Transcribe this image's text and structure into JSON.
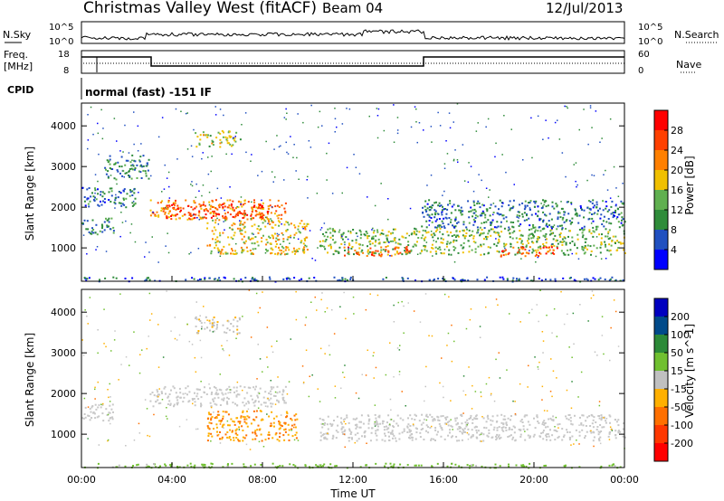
{
  "header": {
    "station": "Christmas Valley West (fitACF)",
    "beam": "Beam 04",
    "date": "12/Jul/2013"
  },
  "strip_panels": {
    "nsky": {
      "label": "N.Sky",
      "ticks_left": [
        "10^5",
        "10^0"
      ],
      "ticks_right": [
        "10^5",
        "10^0"
      ],
      "right_label": "N.Search"
    },
    "freq": {
      "label_top": "Freq.",
      "label_bottom": "[MHz]",
      "ticks_left": [
        "18",
        "8"
      ],
      "ticks_right": [
        "60",
        "0"
      ],
      "right_label": "Nave"
    },
    "cpid": {
      "label": "CPID",
      "program": "normal (fast) -151 IF"
    }
  },
  "colors": {
    "power_scale": [
      "#0000ff",
      "#2050c0",
      "#2f8c3a",
      "#60b050",
      "#f0c000",
      "#ff8000",
      "#ff4000",
      "#ff0000"
    ],
    "velocity_scale": [
      "#0000c0",
      "#004a8a",
      "#2c8a38",
      "#70c030",
      "#c0c0c0",
      "#ffb000",
      "#ff7000",
      "#ff3800",
      "#ff0000"
    ],
    "scatter_grey": "#c8c8c8"
  },
  "chart_data": [
    {
      "type": "heatmap",
      "panel": "power",
      "xlabel": "",
      "ylabel": "Slant Range [km]",
      "xlim": [
        0,
        24
      ],
      "ylim": [
        180,
        4560
      ],
      "yticks": [
        "1000",
        "2000",
        "3000",
        "4000"
      ],
      "colorbar": {
        "label": "Power [dB]",
        "range": [
          0,
          32
        ],
        "ticks": [
          "28",
          "24",
          "20",
          "16",
          "12",
          "8",
          "4"
        ]
      },
      "regions": [
        {
          "name": "ground-scatter-band",
          "t": [
            0,
            24
          ],
          "r": [
            190,
            300
          ],
          "value": 6
        },
        {
          "name": "early-band",
          "t": [
            0.0,
            1.4
          ],
          "r": [
            1350,
            1750
          ],
          "value": 9
        },
        {
          "name": "early-upper",
          "t": [
            0.0,
            2.5
          ],
          "r": [
            2000,
            2500
          ],
          "value": 8
        },
        {
          "name": "arc-3000",
          "t": [
            1.0,
            3.0
          ],
          "r": [
            2700,
            3300
          ],
          "value": 10
        },
        {
          "name": "main-arc",
          "t": [
            3.0,
            9.0
          ],
          "r": [
            1700,
            2200
          ],
          "value": 22
        },
        {
          "name": "main-arc-core",
          "t": [
            3.5,
            8.5
          ],
          "r": [
            1750,
            2100
          ],
          "value": 27
        },
        {
          "name": "upper-patch",
          "t": [
            5.0,
            7.0
          ],
          "r": [
            3500,
            3900
          ],
          "value": 16
        },
        {
          "name": "descending-band",
          "t": [
            5.5,
            10.0
          ],
          "r": [
            850,
            1700
          ],
          "value": 18
        },
        {
          "name": "night-band",
          "t": [
            10.5,
            24
          ],
          "r": [
            850,
            1500
          ],
          "value": 14
        },
        {
          "name": "night-core-1",
          "t": [
            11.5,
            14.5
          ],
          "r": [
            800,
            1050
          ],
          "value": 24
        },
        {
          "name": "night-core-2",
          "t": [
            18.5,
            21.0
          ],
          "r": [
            800,
            1050
          ],
          "value": 25
        },
        {
          "name": "night-upper",
          "t": [
            15.0,
            24
          ],
          "r": [
            1500,
            2200
          ],
          "value": 8
        }
      ]
    },
    {
      "type": "heatmap",
      "panel": "velocity",
      "xlabel": "Time UT",
      "ylabel": "Slant Range [km]",
      "xlim": [
        0,
        24
      ],
      "ylim": [
        180,
        4560
      ],
      "xticks": [
        "00:00",
        "04:00",
        "08:00",
        "12:00",
        "16:00",
        "20:00",
        "00:00"
      ],
      "yticks": [
        "1000",
        "2000",
        "3000",
        "4000"
      ],
      "colorbar": {
        "label": "Velocity [m s^-1]",
        "range": [
          -250,
          250
        ],
        "ticks": [
          "200",
          "100",
          "50",
          "15",
          "-15",
          "-50",
          "-100",
          "-200"
        ]
      },
      "regions": [
        {
          "name": "ground-scatter-band",
          "t": [
            0,
            24
          ],
          "r": [
            190,
            300
          ],
          "value": 40
        },
        {
          "name": "early-band",
          "t": [
            0.0,
            1.4
          ],
          "r": [
            1350,
            1750
          ],
          "value": 0
        },
        {
          "name": "main-arc",
          "t": [
            3.0,
            9.0
          ],
          "r": [
            1700,
            2200
          ],
          "value": 0
        },
        {
          "name": "upper-patch",
          "t": [
            5.0,
            7.0
          ],
          "r": [
            3500,
            3900
          ],
          "value": -20
        },
        {
          "name": "descending-band",
          "t": [
            5.5,
            9.5
          ],
          "r": [
            850,
            1600
          ],
          "value": -80
        },
        {
          "name": "night-band",
          "t": [
            10.5,
            24
          ],
          "r": [
            850,
            1500
          ],
          "value": 0
        }
      ]
    }
  ]
}
